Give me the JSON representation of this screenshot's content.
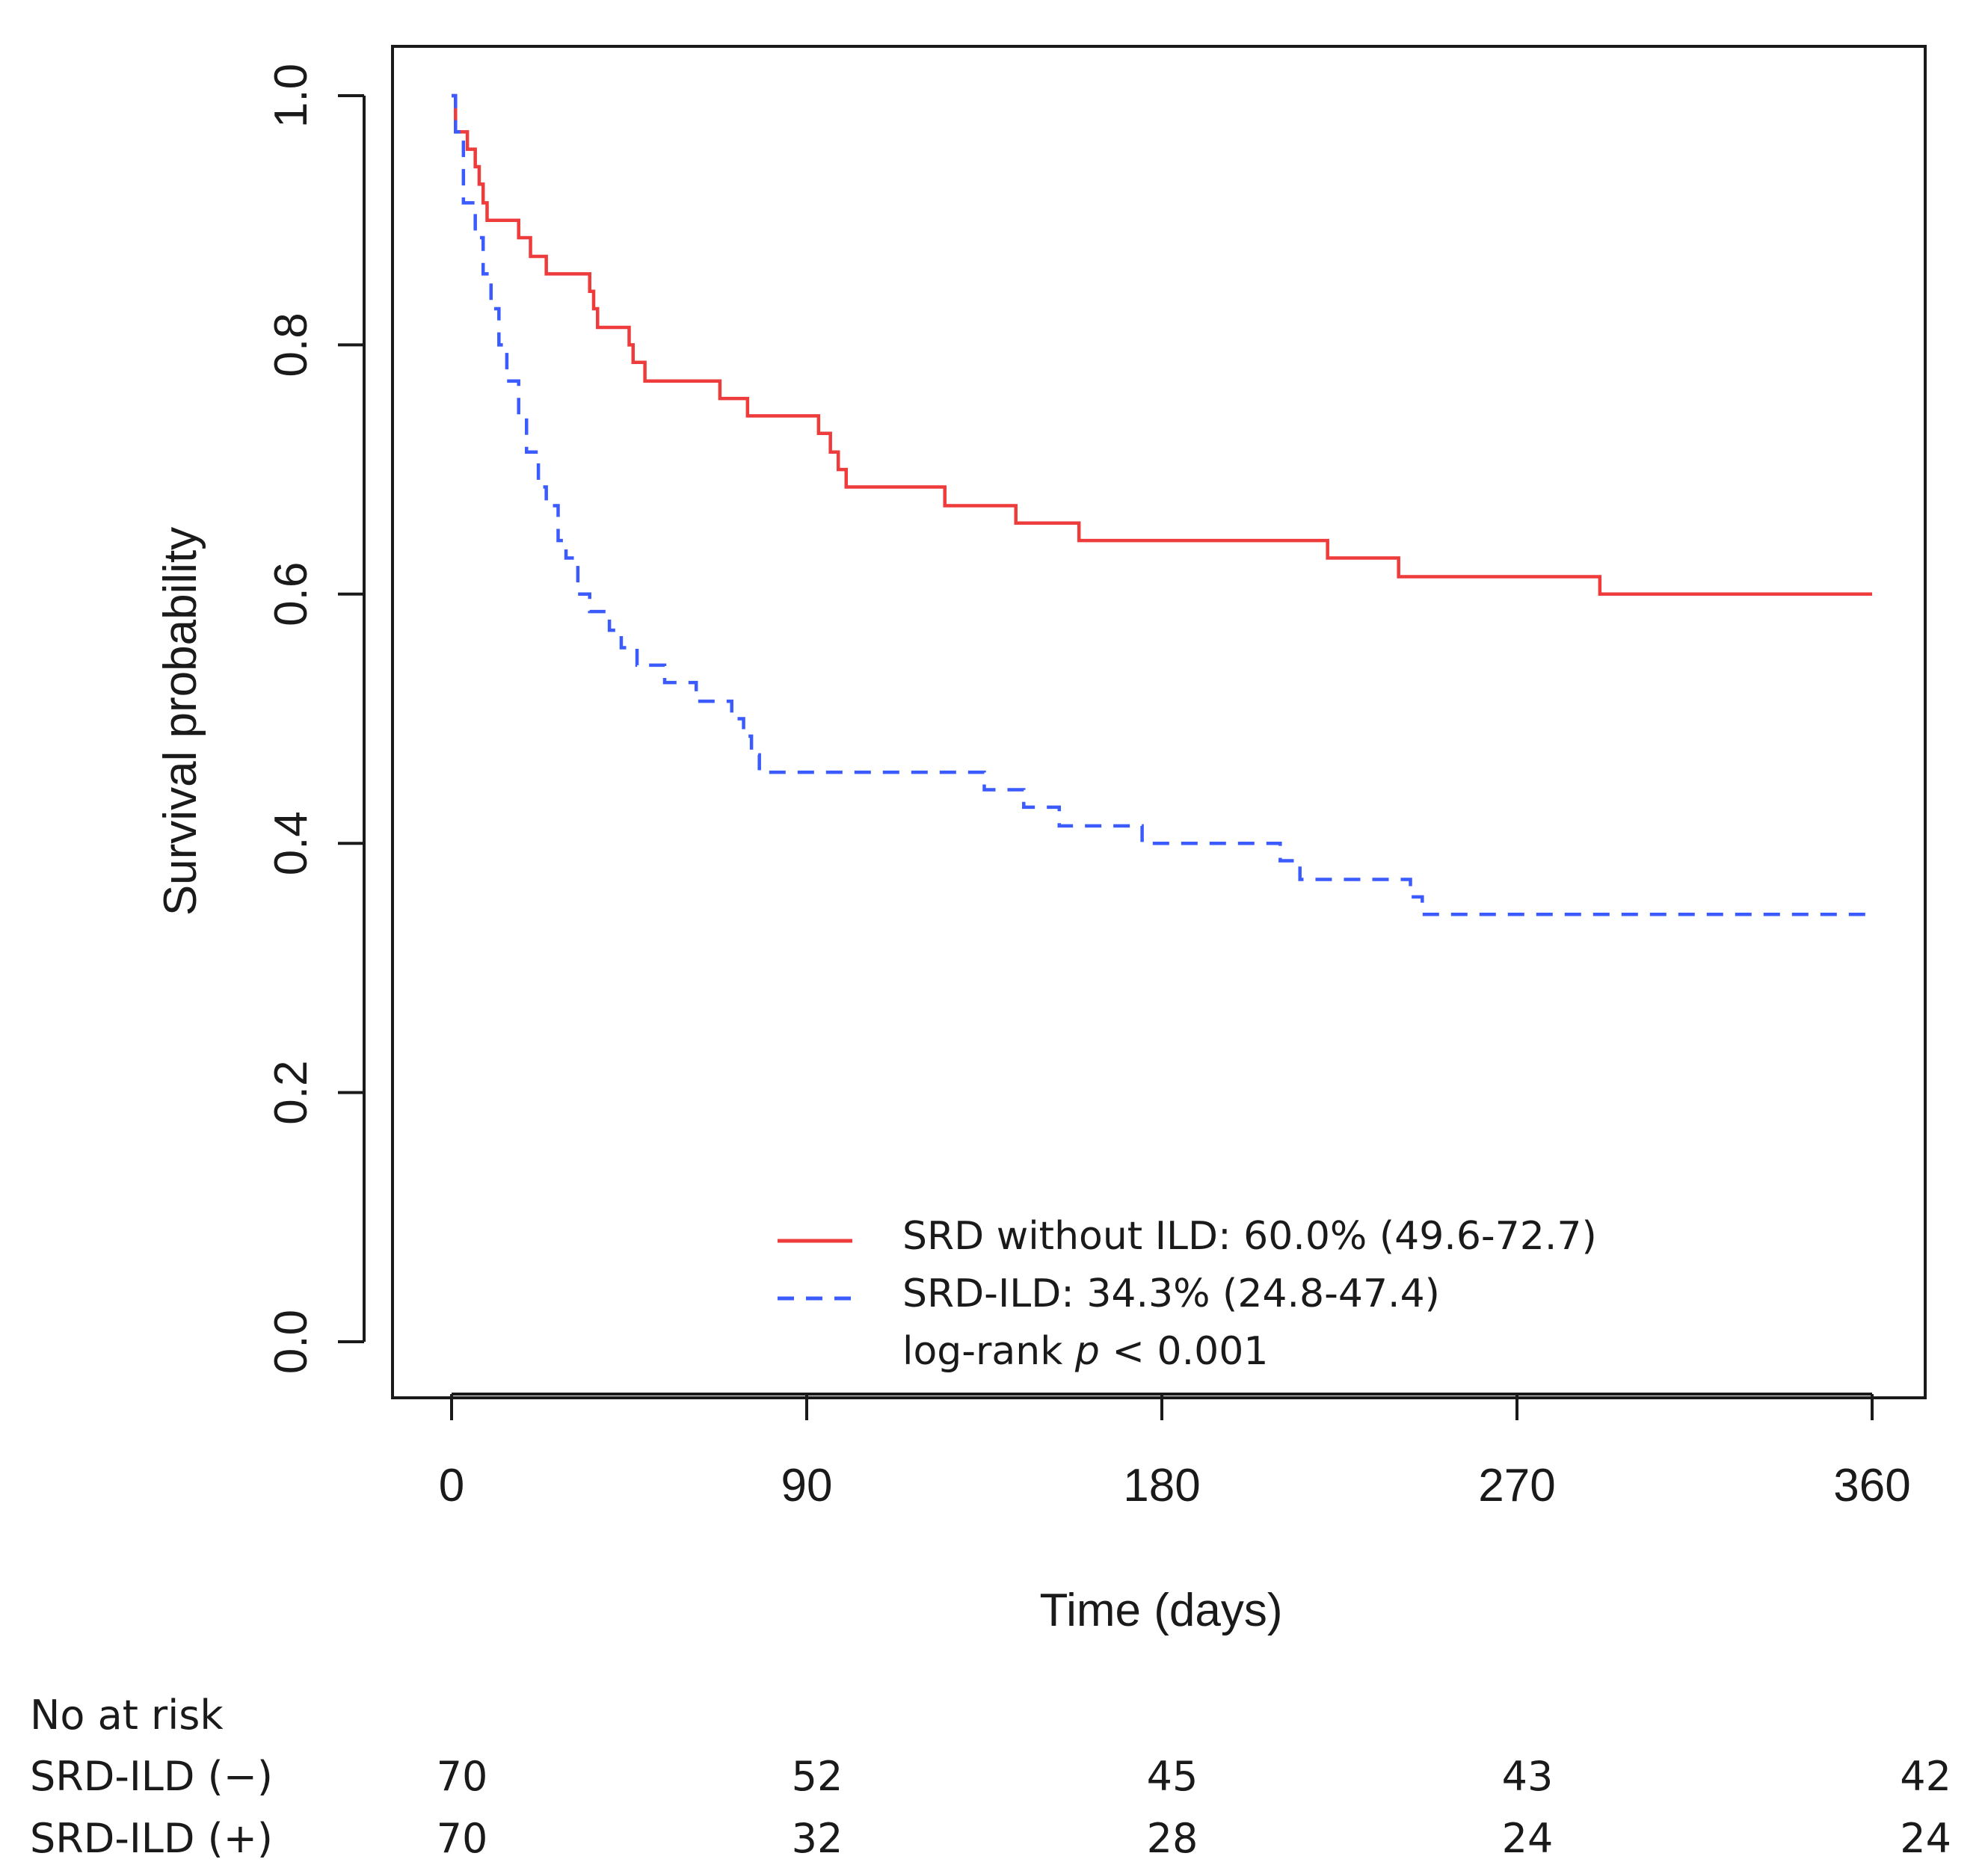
{
  "chart_data": {
    "type": "line",
    "title": "",
    "xlabel": "Time (days)",
    "ylabel": "Survival probability",
    "xlim": [
      0,
      360
    ],
    "ylim": [
      0.0,
      1.0
    ],
    "x_ticks": [
      0,
      90,
      180,
      270,
      360
    ],
    "x_tick_labels": [
      "0",
      "90",
      "180",
      "270",
      "360"
    ],
    "y_ticks": [
      0.0,
      0.2,
      0.4,
      0.6,
      0.8,
      1.0
    ],
    "y_tick_labels": [
      "0.0",
      "0.2",
      "0.4",
      "0.6",
      "0.8",
      "1.0"
    ],
    "grid": false,
    "legend_position": "bottom-right",
    "series": [
      {
        "name": "SRD without ILD",
        "legend_label": "SRD without ILD: 60.0% (49.6-72.7)",
        "color": "#ee3b3b",
        "dash": "solid",
        "times": [
          0,
          1,
          4,
          6,
          7,
          8,
          9,
          10,
          17,
          20,
          24,
          35,
          36,
          37,
          38,
          45,
          46,
          49,
          51,
          68,
          75,
          93,
          96,
          98,
          100,
          125,
          143,
          159,
          222,
          240,
          291,
          360
        ],
        "values": [
          1.0,
          0.971,
          0.957,
          0.943,
          0.929,
          0.914,
          0.9,
          0.9,
          0.886,
          0.871,
          0.857,
          0.843,
          0.829,
          0.814,
          0.814,
          0.8,
          0.786,
          0.771,
          0.771,
          0.757,
          0.743,
          0.729,
          0.714,
          0.7,
          0.686,
          0.671,
          0.657,
          0.643,
          0.629,
          0.614,
          0.6,
          0.6
        ]
      },
      {
        "name": "SRD-ILD",
        "legend_label": "SRD-ILD: 34.3% (24.8-47.4)",
        "color": "#3b5bff",
        "dash": "dashed",
        "times": [
          0,
          1,
          3,
          6,
          8,
          10,
          12,
          14,
          17,
          19,
          22,
          24,
          27,
          29,
          32,
          35,
          40,
          43,
          47,
          54,
          58,
          62,
          66,
          71,
          74,
          76,
          78,
          135,
          142,
          145,
          154,
          168,
          175,
          210,
          215,
          243,
          246,
          360
        ],
        "values": [
          1.0,
          0.971,
          0.914,
          0.886,
          0.857,
          0.829,
          0.8,
          0.771,
          0.743,
          0.714,
          0.686,
          0.671,
          0.643,
          0.629,
          0.6,
          0.586,
          0.571,
          0.557,
          0.543,
          0.529,
          0.529,
          0.514,
          0.514,
          0.5,
          0.486,
          0.471,
          0.457,
          0.443,
          0.443,
          0.429,
          0.414,
          0.414,
          0.4,
          0.386,
          0.371,
          0.357,
          0.343,
          0.343
        ]
      }
    ],
    "annotation": {
      "prefix": "log-rank ",
      "italic": "p",
      "suffix": " < 0.001"
    },
    "risk_table": {
      "title": "No at risk",
      "times": [
        0,
        90,
        180,
        270,
        360
      ],
      "rows": [
        {
          "label": "SRD-ILD (−)",
          "values": [
            "70",
            "52",
            "45",
            "43",
            "42"
          ]
        },
        {
          "label": "SRD-ILD (+)",
          "values": [
            "70",
            "32",
            "28",
            "24",
            "24"
          ]
        }
      ]
    }
  }
}
